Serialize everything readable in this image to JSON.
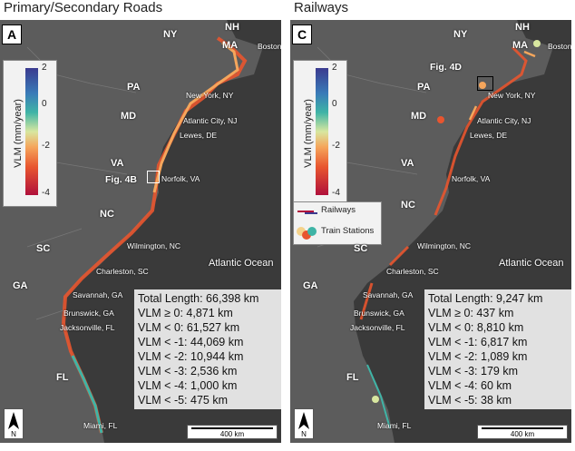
{
  "panels": [
    {
      "title": "Primary/Secondary Roads",
      "letter": "A",
      "colorbar": {
        "label": "VLM (mm/year)",
        "ticks": [
          "2",
          "0",
          "-2",
          "-4"
        ]
      },
      "fig_label": "Fig. 4B",
      "stats": [
        "Total Length: 66,398 km",
        "VLM ≥ 0: 4,871 km",
        "VLM < 0: 61,527 km",
        "VLM < -1: 44,069 km",
        "VLM < -2: 10,944 km",
        "VLM < -3: 2,536 km",
        "VLM < -4: 1,000 km",
        "VLM < -5: 475 km"
      ]
    },
    {
      "title": "Railways",
      "letter": "C",
      "colorbar": {
        "label": "VLM (mm/year)",
        "ticks": [
          "2",
          "0",
          "-2",
          "-4"
        ]
      },
      "fig_label": "Fig. 4D",
      "legend": [
        "Railways",
        "Train Stations"
      ],
      "stats": [
        "Total Length: 9,247 km",
        "VLM ≥ 0: 437 km",
        "VLM < 0: 8,810 km",
        "VLM < -1: 6,817 km",
        "VLM < -2: 1,089 km",
        "VLM < -3: 179 km",
        "VLM < -4: 60 km",
        "VLM < -5: 38 km"
      ]
    }
  ],
  "map_labels": {
    "states": [
      "NH",
      "MA",
      "NY",
      "PA",
      "MD",
      "VA",
      "NC",
      "SC",
      "GA",
      "FL"
    ],
    "cities": [
      "Boston",
      "New York, NY",
      "Atlantic City, NJ",
      "Lewes, DE",
      "Norfolk, VA",
      "Wilmington, NC",
      "Charleston, SC",
      "Savannah, GA",
      "Brunswick, GA",
      "Jacksonville, FL",
      "Miami, FL"
    ],
    "ocean": "Atlantic Ocean",
    "scale": "400 km",
    "north": "N"
  },
  "colors": {
    "land": "#5a5a5a",
    "ocean": "#3a3a3a",
    "coast_hot": "#e8552f",
    "coast_warm": "#f5a65c",
    "coast_cool": "#3fb4a6"
  }
}
